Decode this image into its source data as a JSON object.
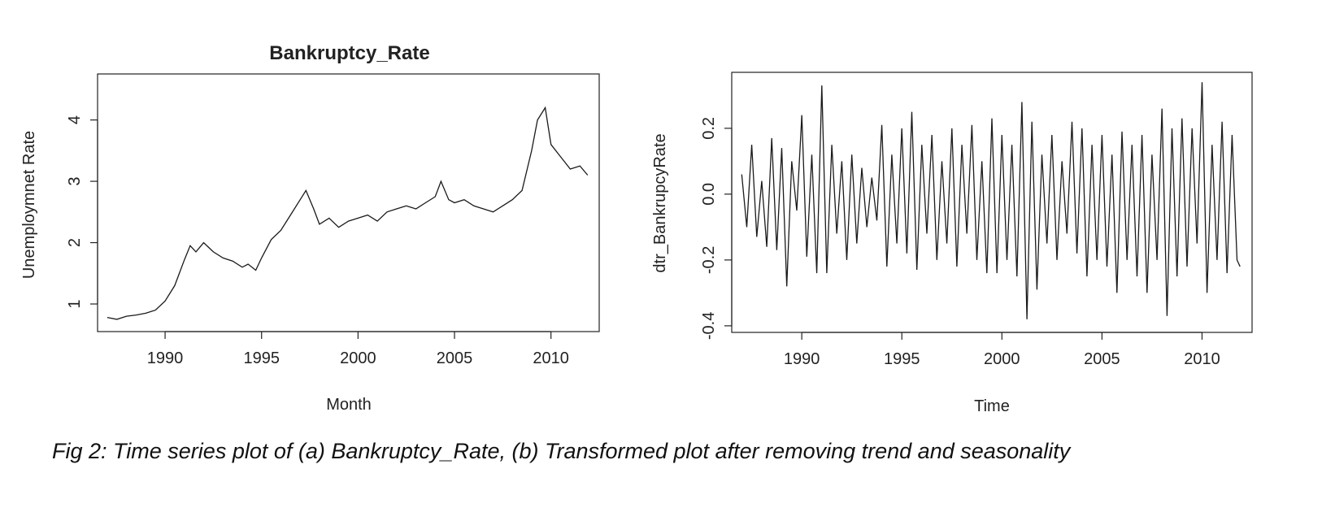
{
  "caption": "Fig 2: Time series plot of (a) Bankruptcy_Rate, (b) Transformed plot after removing trend and seasonality",
  "chart_data": [
    {
      "type": "line",
      "title": "Bankruptcy_Rate",
      "xlabel": "Month",
      "ylabel": "Unemploymnet Rate",
      "xlim": [
        1986.5,
        2012.5
      ],
      "ylim": [
        0.55,
        4.75
      ],
      "x_ticks": [
        1990,
        1995,
        2000,
        2005,
        2010
      ],
      "y_ticks": [
        1,
        2,
        3,
        4
      ],
      "grid": false,
      "series": [
        {
          "x": [
            1987.0,
            1987.5,
            1988.0,
            1988.5,
            1989.0,
            1989.5,
            1990.0,
            1990.5,
            1991.0,
            1991.3,
            1991.6,
            1992.0,
            1992.5,
            1993.0,
            1993.5,
            1994.0,
            1994.3,
            1994.7,
            1995.0,
            1995.5,
            1996.0,
            1996.5,
            1997.0,
            1997.3,
            1997.7,
            1998.0,
            1998.5,
            1999.0,
            1999.5,
            2000.0,
            2000.5,
            2001.0,
            2001.5,
            2002.0,
            2002.5,
            2003.0,
            2003.5,
            2004.0,
            2004.3,
            2004.7,
            2005.0,
            2005.5,
            2006.0,
            2006.5,
            2007.0,
            2007.5,
            2008.0,
            2008.5,
            2009.0,
            2009.3,
            2009.7,
            2010.0,
            2010.5,
            2011.0,
            2011.5,
            2011.9
          ],
          "values": [
            0.78,
            0.75,
            0.8,
            0.82,
            0.85,
            0.9,
            1.05,
            1.3,
            1.72,
            1.95,
            1.85,
            2.0,
            1.85,
            1.75,
            1.7,
            1.6,
            1.65,
            1.55,
            1.75,
            2.05,
            2.2,
            2.45,
            2.7,
            2.85,
            2.55,
            2.3,
            2.4,
            2.25,
            2.35,
            2.4,
            2.45,
            2.35,
            2.5,
            2.55,
            2.6,
            2.55,
            2.65,
            2.75,
            3.0,
            2.7,
            2.65,
            2.7,
            2.6,
            2.55,
            2.5,
            2.6,
            2.7,
            2.85,
            3.5,
            4.0,
            4.2,
            3.6,
            3.4,
            3.2,
            3.25,
            3.1
          ]
        }
      ]
    },
    {
      "type": "line",
      "title": "",
      "xlabel": "Time",
      "ylabel": "dtr_BankrupcyRate",
      "xlim": [
        1986.5,
        2012.5
      ],
      "ylim": [
        -0.42,
        0.37
      ],
      "x_ticks": [
        1990,
        1995,
        2000,
        2005,
        2010
      ],
      "y_ticks": [
        -0.4,
        -0.2,
        0.0,
        0.2
      ],
      "y_tick_labels": [
        "-0.4",
        "-0.2",
        "0.0",
        "0.2"
      ],
      "grid": false,
      "series": [
        {
          "x": [
            1987.0,
            1987.25,
            1987.5,
            1987.75,
            1988.0,
            1988.25,
            1988.5,
            1988.75,
            1989.0,
            1989.25,
            1989.5,
            1989.75,
            1990.0,
            1990.25,
            1990.5,
            1990.75,
            1991.0,
            1991.25,
            1991.5,
            1991.75,
            1992.0,
            1992.25,
            1992.5,
            1992.75,
            1993.0,
            1993.25,
            1993.5,
            1993.75,
            1994.0,
            1994.25,
            1994.5,
            1994.75,
            1995.0,
            1995.25,
            1995.5,
            1995.75,
            1996.0,
            1996.25,
            1996.5,
            1996.75,
            1997.0,
            1997.25,
            1997.5,
            1997.75,
            1998.0,
            1998.25,
            1998.5,
            1998.75,
            1999.0,
            1999.25,
            1999.5,
            1999.75,
            2000.0,
            2000.25,
            2000.5,
            2000.75,
            2001.0,
            2001.25,
            2001.5,
            2001.75,
            2002.0,
            2002.25,
            2002.5,
            2002.75,
            2003.0,
            2003.25,
            2003.5,
            2003.75,
            2004.0,
            2004.25,
            2004.5,
            2004.75,
            2005.0,
            2005.25,
            2005.5,
            2005.75,
            2006.0,
            2006.25,
            2006.5,
            2006.75,
            2007.0,
            2007.25,
            2007.5,
            2007.75,
            2008.0,
            2008.25,
            2008.5,
            2008.75,
            2009.0,
            2009.25,
            2009.5,
            2009.75,
            2010.0,
            2010.25,
            2010.5,
            2010.75,
            2011.0,
            2011.25,
            2011.5,
            2011.75,
            2011.9
          ],
          "values": [
            0.06,
            -0.1,
            0.15,
            -0.13,
            0.04,
            -0.16,
            0.17,
            -0.17,
            0.14,
            -0.28,
            0.1,
            -0.05,
            0.24,
            -0.19,
            0.12,
            -0.24,
            0.33,
            -0.24,
            0.15,
            -0.12,
            0.1,
            -0.2,
            0.12,
            -0.15,
            0.08,
            -0.1,
            0.05,
            -0.08,
            0.21,
            -0.22,
            0.12,
            -0.15,
            0.2,
            -0.18,
            0.25,
            -0.23,
            0.15,
            -0.12,
            0.18,
            -0.2,
            0.1,
            -0.15,
            0.2,
            -0.22,
            0.15,
            -0.12,
            0.21,
            -0.2,
            0.1,
            -0.24,
            0.23,
            -0.24,
            0.18,
            -0.2,
            0.15,
            -0.25,
            0.28,
            -0.38,
            0.22,
            -0.29,
            0.12,
            -0.15,
            0.18,
            -0.2,
            0.1,
            -0.12,
            0.22,
            -0.18,
            0.2,
            -0.25,
            0.15,
            -0.2,
            0.18,
            -0.22,
            0.12,
            -0.3,
            0.19,
            -0.2,
            0.15,
            -0.25,
            0.18,
            -0.3,
            0.12,
            -0.2,
            0.26,
            -0.37,
            0.2,
            -0.25,
            0.23,
            -0.22,
            0.2,
            -0.15,
            0.34,
            -0.3,
            0.15,
            -0.2,
            0.22,
            -0.24,
            0.18,
            -0.2,
            -0.22
          ]
        }
      ]
    }
  ]
}
